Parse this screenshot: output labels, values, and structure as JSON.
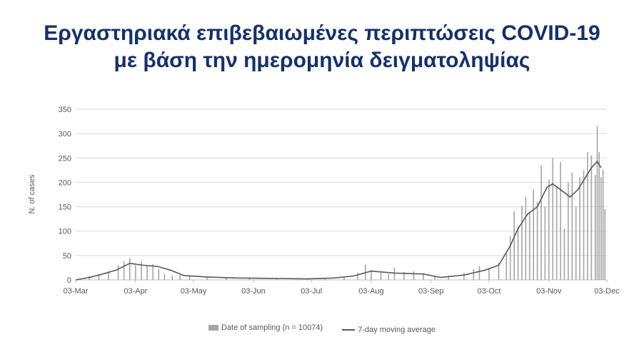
{
  "title_line1": "Εργαστηριακά επιβεβαιωμένες περιπτώσεις COVID-19",
  "title_line2": "με βάση την ημερομηνία δειγματοληψίας",
  "chart_data": {
    "type": "bar",
    "ylabel": "N. of cases",
    "ylim": [
      0,
      350
    ],
    "yticks": [
      0,
      50,
      100,
      150,
      200,
      250,
      300,
      350
    ],
    "xticks": [
      "03-Mar",
      "03-Apr",
      "03-May",
      "03-Jun",
      "03-Jul",
      "03-Aug",
      "03-Sep",
      "03-Oct",
      "03-Nov",
      "03-Dec"
    ],
    "x_start": "2020-03-03",
    "x_end": "2020-12-03",
    "grid": true,
    "legend_position": "bottom",
    "colors": {
      "bars": "#a6a6a6",
      "line": "#595959"
    },
    "series": [
      {
        "name": "Date of sampling (n = 10074)",
        "type": "bar",
        "points": [
          [
            "2020-03-05",
            2
          ],
          [
            "2020-03-10",
            8
          ],
          [
            "2020-03-15",
            12
          ],
          [
            "2020-03-20",
            18
          ],
          [
            "2020-03-25",
            30
          ],
          [
            "2020-03-28",
            38
          ],
          [
            "2020-03-31",
            45
          ],
          [
            "2020-04-03",
            30
          ],
          [
            "2020-04-06",
            38
          ],
          [
            "2020-04-09",
            28
          ],
          [
            "2020-04-12",
            32
          ],
          [
            "2020-04-15",
            22
          ],
          [
            "2020-04-18",
            12
          ],
          [
            "2020-04-22",
            9
          ],
          [
            "2020-04-26",
            10
          ],
          [
            "2020-05-01",
            8
          ],
          [
            "2020-05-10",
            5
          ],
          [
            "2020-05-20",
            4
          ],
          [
            "2020-06-01",
            4
          ],
          [
            "2020-06-15",
            3
          ],
          [
            "2020-07-01",
            3
          ],
          [
            "2020-07-10",
            4
          ],
          [
            "2020-07-20",
            6
          ],
          [
            "2020-07-27",
            15
          ],
          [
            "2020-07-31",
            31
          ],
          [
            "2020-08-03",
            20
          ],
          [
            "2020-08-08",
            15
          ],
          [
            "2020-08-12",
            12
          ],
          [
            "2020-08-15",
            25
          ],
          [
            "2020-08-20",
            16
          ],
          [
            "2020-08-25",
            18
          ],
          [
            "2020-08-30",
            14
          ],
          [
            "2020-09-05",
            8
          ],
          [
            "2020-09-12",
            9
          ],
          [
            "2020-09-20",
            14
          ],
          [
            "2020-09-25",
            22
          ],
          [
            "2020-09-28",
            28
          ],
          [
            "2020-10-03",
            24
          ],
          [
            "2020-10-08",
            35
          ],
          [
            "2020-10-12",
            55
          ],
          [
            "2020-10-14",
            90
          ],
          [
            "2020-10-16",
            140
          ],
          [
            "2020-10-18",
            110
          ],
          [
            "2020-10-20",
            152
          ],
          [
            "2020-10-22",
            170
          ],
          [
            "2020-10-24",
            140
          ],
          [
            "2020-10-26",
            185
          ],
          [
            "2020-10-28",
            160
          ],
          [
            "2020-10-30",
            235
          ],
          [
            "2020-11-01",
            150
          ],
          [
            "2020-11-03",
            205
          ],
          [
            "2020-11-05",
            250
          ],
          [
            "2020-11-07",
            190
          ],
          [
            "2020-11-09",
            242
          ],
          [
            "2020-11-11",
            105
          ],
          [
            "2020-11-13",
            200
          ],
          [
            "2020-11-15",
            220
          ],
          [
            "2020-11-17",
            150
          ],
          [
            "2020-11-19",
            210
          ],
          [
            "2020-11-21",
            225
          ],
          [
            "2020-11-23",
            262
          ],
          [
            "2020-11-25",
            255
          ],
          [
            "2020-11-27",
            215
          ],
          [
            "2020-11-28",
            315
          ],
          [
            "2020-11-29",
            262
          ],
          [
            "2020-11-30",
            210
          ],
          [
            "2020-12-01",
            226
          ],
          [
            "2020-12-02",
            145
          ]
        ]
      },
      {
        "name": "7-day moving average",
        "type": "line",
        "points": [
          [
            "2020-03-03",
            0
          ],
          [
            "2020-03-10",
            5
          ],
          [
            "2020-03-17",
            12
          ],
          [
            "2020-03-24",
            20
          ],
          [
            "2020-03-31",
            34
          ],
          [
            "2020-04-07",
            30
          ],
          [
            "2020-04-14",
            28
          ],
          [
            "2020-04-21",
            20
          ],
          [
            "2020-04-28",
            9
          ],
          [
            "2020-05-10",
            6
          ],
          [
            "2020-05-25",
            4
          ],
          [
            "2020-06-15",
            3
          ],
          [
            "2020-07-01",
            2
          ],
          [
            "2020-07-15",
            4
          ],
          [
            "2020-07-25",
            8
          ],
          [
            "2020-08-03",
            18
          ],
          [
            "2020-08-15",
            14
          ],
          [
            "2020-08-30",
            12
          ],
          [
            "2020-09-08",
            5
          ],
          [
            "2020-09-20",
            10
          ],
          [
            "2020-10-01",
            20
          ],
          [
            "2020-10-08",
            30
          ],
          [
            "2020-10-14",
            70
          ],
          [
            "2020-10-18",
            105
          ],
          [
            "2020-10-23",
            135
          ],
          [
            "2020-10-28",
            150
          ],
          [
            "2020-11-02",
            190
          ],
          [
            "2020-11-05",
            197
          ],
          [
            "2020-11-10",
            182
          ],
          [
            "2020-11-14",
            170
          ],
          [
            "2020-11-18",
            185
          ],
          [
            "2020-11-25",
            230
          ],
          [
            "2020-11-28",
            243
          ],
          [
            "2020-11-30",
            230
          ]
        ]
      }
    ]
  }
}
